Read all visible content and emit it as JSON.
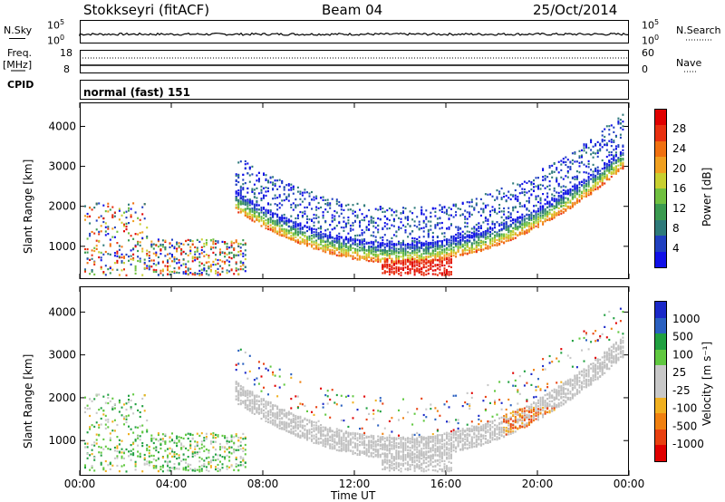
{
  "header": {
    "title": "Stokkseyri (fitACF)",
    "beam": "Beam 04",
    "date": "25/Oct/2014"
  },
  "strip_panels": {
    "nsky_label": "N.Sky",
    "nsky_scale_top": "10^5",
    "nsky_scale_bottom": "10^0",
    "nsearch_label": "N.Search",
    "nsearch_scale_top": "10^5",
    "nsearch_scale_bottom": "10^0",
    "freq_label": "Freq.",
    "freq_unit": "[MHz]",
    "freq_top": "18",
    "freq_bottom": "8",
    "nave_label": "Nave",
    "nave_top": "60",
    "nave_bottom": "0",
    "cpid_label": "CPID",
    "cpid_text": "normal (fast) 151"
  },
  "colors": {
    "power_scale": [
      "#1010e8",
      "#2040c0",
      "#2e7a7a",
      "#3a9a50",
      "#70c040",
      "#c8d030",
      "#f0a020",
      "#f07010",
      "#e83010",
      "#e00000"
    ],
    "velocity_scale": [
      "#1a28c8",
      "#2a60c0",
      "#20a040",
      "#60c840",
      "#c8c8c8",
      "#c8c8c8",
      "#f0b020",
      "#f08010",
      "#e84010",
      "#e00000"
    ],
    "ground_scatter": "#c0c0c0"
  },
  "chart_data": [
    {
      "type": "heatmap",
      "name": "power",
      "ylabel": "Slant Range [km]",
      "ylim": [
        180,
        4600
      ],
      "yticks": [
        "1000",
        "2000",
        "3000",
        "4000"
      ],
      "xticks": [
        "00:00",
        "04:00",
        "08:00",
        "12:00",
        "16:00",
        "20:00",
        "00:00"
      ],
      "colorbar_label": "Power [dB]",
      "colorbar_ticks": [
        "4",
        "8",
        "12",
        "16",
        "20",
        "24",
        "28"
      ],
      "colorbar_range": [
        0,
        30
      ]
    },
    {
      "type": "heatmap",
      "name": "velocity",
      "ylabel": "Slant Range [km]",
      "ylim": [
        180,
        4600
      ],
      "yticks": [
        "1000",
        "2000",
        "3000",
        "4000"
      ],
      "xticks": [
        "00:00",
        "04:00",
        "08:00",
        "12:00",
        "16:00",
        "20:00",
        "00:00"
      ],
      "xlabel": "Time UT",
      "colorbar_label": "Velocity [m s⁻¹]",
      "colorbar_ticks": [
        "1000",
        "500",
        "100",
        "25",
        "-25",
        "-100",
        "-500",
        "-1000"
      ],
      "ground_scatter": "grey"
    }
  ]
}
